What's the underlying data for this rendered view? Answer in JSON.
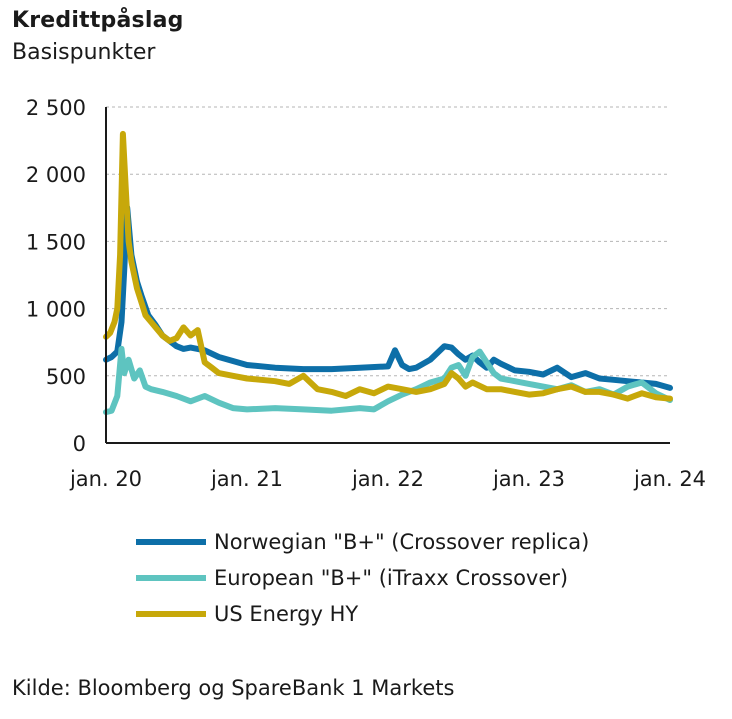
{
  "chart_data": {
    "type": "line",
    "title": "Kredittpåslag",
    "subtitle": "Basispunkter",
    "ylim": [
      0,
      2500
    ],
    "yticks": [
      0,
      500,
      1000,
      1500,
      2000,
      2500
    ],
    "ytick_labels": [
      "0",
      "500",
      "1 000",
      "1 500",
      "2 000",
      "2 500"
    ],
    "xlim": [
      2020.0,
      2024.0
    ],
    "xticks": [
      2020,
      2021,
      2022,
      2023,
      2024
    ],
    "xtick_labels": [
      "jan. 20",
      "jan. 21",
      "jan. 22",
      "jan. 23",
      "jan. 24"
    ],
    "grid": "horizontal dashed",
    "legend_position": "bottom",
    "series": [
      {
        "name": "Norwegian \"B+\" (Crossover replica)",
        "color": "#0d6fa8",
        "x": [
          2020.0,
          2020.04,
          2020.08,
          2020.11,
          2020.13,
          2020.15,
          2020.18,
          2020.2,
          2020.22,
          2020.25,
          2020.3,
          2020.35,
          2020.4,
          2020.45,
          2020.5,
          2020.55,
          2020.6,
          2020.7,
          2020.8,
          2020.9,
          2021.0,
          2021.2,
          2021.4,
          2021.6,
          2021.8,
          2022.0,
          2022.05,
          2022.1,
          2022.15,
          2022.2,
          2022.3,
          2022.4,
          2022.45,
          2022.5,
          2022.55,
          2022.6,
          2022.65,
          2022.7,
          2022.75,
          2022.8,
          2022.9,
          2023.0,
          2023.1,
          2023.2,
          2023.3,
          2023.4,
          2023.5,
          2023.6,
          2023.7,
          2023.8,
          2023.9,
          2024.0
        ],
        "y": [
          620,
          640,
          680,
          900,
          1300,
          1750,
          1400,
          1300,
          1200,
          1100,
          950,
          880,
          800,
          760,
          720,
          700,
          710,
          690,
          640,
          610,
          580,
          560,
          550,
          550,
          560,
          570,
          690,
          580,
          550,
          560,
          620,
          720,
          710,
          660,
          620,
          650,
          600,
          560,
          620,
          590,
          540,
          530,
          510,
          560,
          490,
          520,
          480,
          470,
          460,
          450,
          440,
          410
        ]
      },
      {
        "name": "European \"B+\" (iTraxx Crossover)",
        "color": "#5ec4c0",
        "x": [
          2020.0,
          2020.04,
          2020.08,
          2020.11,
          2020.13,
          2020.16,
          2020.2,
          2020.24,
          2020.28,
          2020.32,
          2020.4,
          2020.5,
          2020.6,
          2020.7,
          2020.8,
          2020.9,
          2021.0,
          2021.2,
          2021.4,
          2021.6,
          2021.8,
          2021.9,
          2022.0,
          2022.1,
          2022.2,
          2022.3,
          2022.4,
          2022.45,
          2022.5,
          2022.55,
          2022.6,
          2022.65,
          2022.7,
          2022.75,
          2022.8,
          2022.9,
          2023.0,
          2023.1,
          2023.2,
          2023.3,
          2023.4,
          2023.5,
          2023.6,
          2023.7,
          2023.8,
          2023.9,
          2024.0
        ],
        "y": [
          230,
          240,
          350,
          700,
          520,
          620,
          480,
          540,
          420,
          400,
          380,
          350,
          310,
          350,
          300,
          260,
          250,
          260,
          250,
          240,
          260,
          250,
          310,
          360,
          400,
          450,
          480,
          560,
          580,
          500,
          640,
          680,
          600,
          520,
          480,
          460,
          440,
          420,
          400,
          430,
          380,
          400,
          360,
          420,
          450,
          370,
          320
        ]
      },
      {
        "name": "US Energy HY",
        "color": "#c7a80a",
        "x": [
          2020.0,
          2020.03,
          2020.06,
          2020.08,
          2020.1,
          2020.12,
          2020.14,
          2020.16,
          2020.18,
          2020.2,
          2020.22,
          2020.25,
          2020.28,
          2020.32,
          2020.36,
          2020.4,
          2020.45,
          2020.5,
          2020.55,
          2020.6,
          2020.65,
          2020.7,
          2020.75,
          2020.8,
          2020.9,
          2021.0,
          2021.2,
          2021.3,
          2021.4,
          2021.5,
          2021.6,
          2021.7,
          2021.8,
          2021.9,
          2022.0,
          2022.1,
          2022.2,
          2022.3,
          2022.4,
          2022.45,
          2022.5,
          2022.55,
          2022.6,
          2022.7,
          2022.8,
          2022.9,
          2023.0,
          2023.1,
          2023.2,
          2023.3,
          2023.4,
          2023.5,
          2023.6,
          2023.7,
          2023.8,
          2023.9,
          2024.0
        ],
        "y": [
          790,
          820,
          900,
          1000,
          1400,
          2300,
          1900,
          1500,
          1350,
          1250,
          1150,
          1050,
          950,
          900,
          850,
          800,
          760,
          780,
          860,
          800,
          840,
          600,
          560,
          520,
          500,
          480,
          460,
          440,
          500,
          400,
          380,
          350,
          400,
          370,
          420,
          400,
          380,
          400,
          440,
          520,
          480,
          420,
          450,
          400,
          400,
          380,
          360,
          370,
          400,
          420,
          380,
          380,
          360,
          330,
          370,
          340,
          330
        ]
      }
    ]
  },
  "source": "Kilde: Bloomberg og SpareBank 1 Markets"
}
